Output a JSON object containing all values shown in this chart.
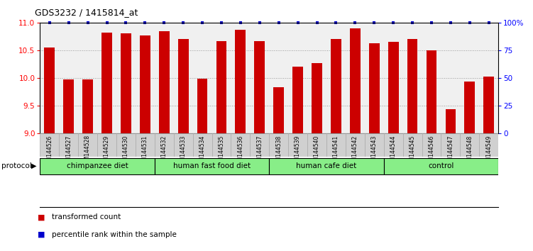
{
  "title": "GDS3232 / 1415814_at",
  "samples": [
    "GSM144526",
    "GSM144527",
    "GSM144528",
    "GSM144529",
    "GSM144530",
    "GSM144531",
    "GSM144532",
    "GSM144533",
    "GSM144534",
    "GSM144535",
    "GSM144536",
    "GSM144537",
    "GSM144538",
    "GSM144539",
    "GSM144540",
    "GSM144541",
    "GSM144542",
    "GSM144543",
    "GSM144544",
    "GSM144545",
    "GSM144546",
    "GSM144547",
    "GSM144548",
    "GSM144549"
  ],
  "values": [
    10.55,
    9.97,
    9.97,
    10.82,
    10.8,
    10.77,
    10.84,
    10.7,
    9.98,
    10.67,
    10.87,
    10.67,
    9.83,
    10.2,
    10.27,
    10.7,
    10.9,
    10.63,
    10.65,
    10.7,
    10.5,
    9.43,
    9.93,
    10.02
  ],
  "bar_color": "#cc0000",
  "percentile_color": "#0000cc",
  "ylim": [
    9.0,
    11.0
  ],
  "y_ticks": [
    9.0,
    9.5,
    10.0,
    10.5,
    11.0
  ],
  "group_ranges": [
    {
      "label": "chimpanzee diet",
      "start": 0,
      "end": 5
    },
    {
      "label": "human fast food diet",
      "start": 6,
      "end": 11
    },
    {
      "label": "human cafe diet",
      "start": 12,
      "end": 17
    },
    {
      "label": "control",
      "start": 18,
      "end": 23
    }
  ],
  "group_color": "#88ee88",
  "chart_bg": "#f0f0f0",
  "tick_cell_bg": "#d0d0d0",
  "tick_cell_alt_bg": "#c8c8c8",
  "legend_items": [
    {
      "label": "transformed count",
      "color": "#cc0000"
    },
    {
      "label": "percentile rank within the sample",
      "color": "#0000cc"
    }
  ]
}
